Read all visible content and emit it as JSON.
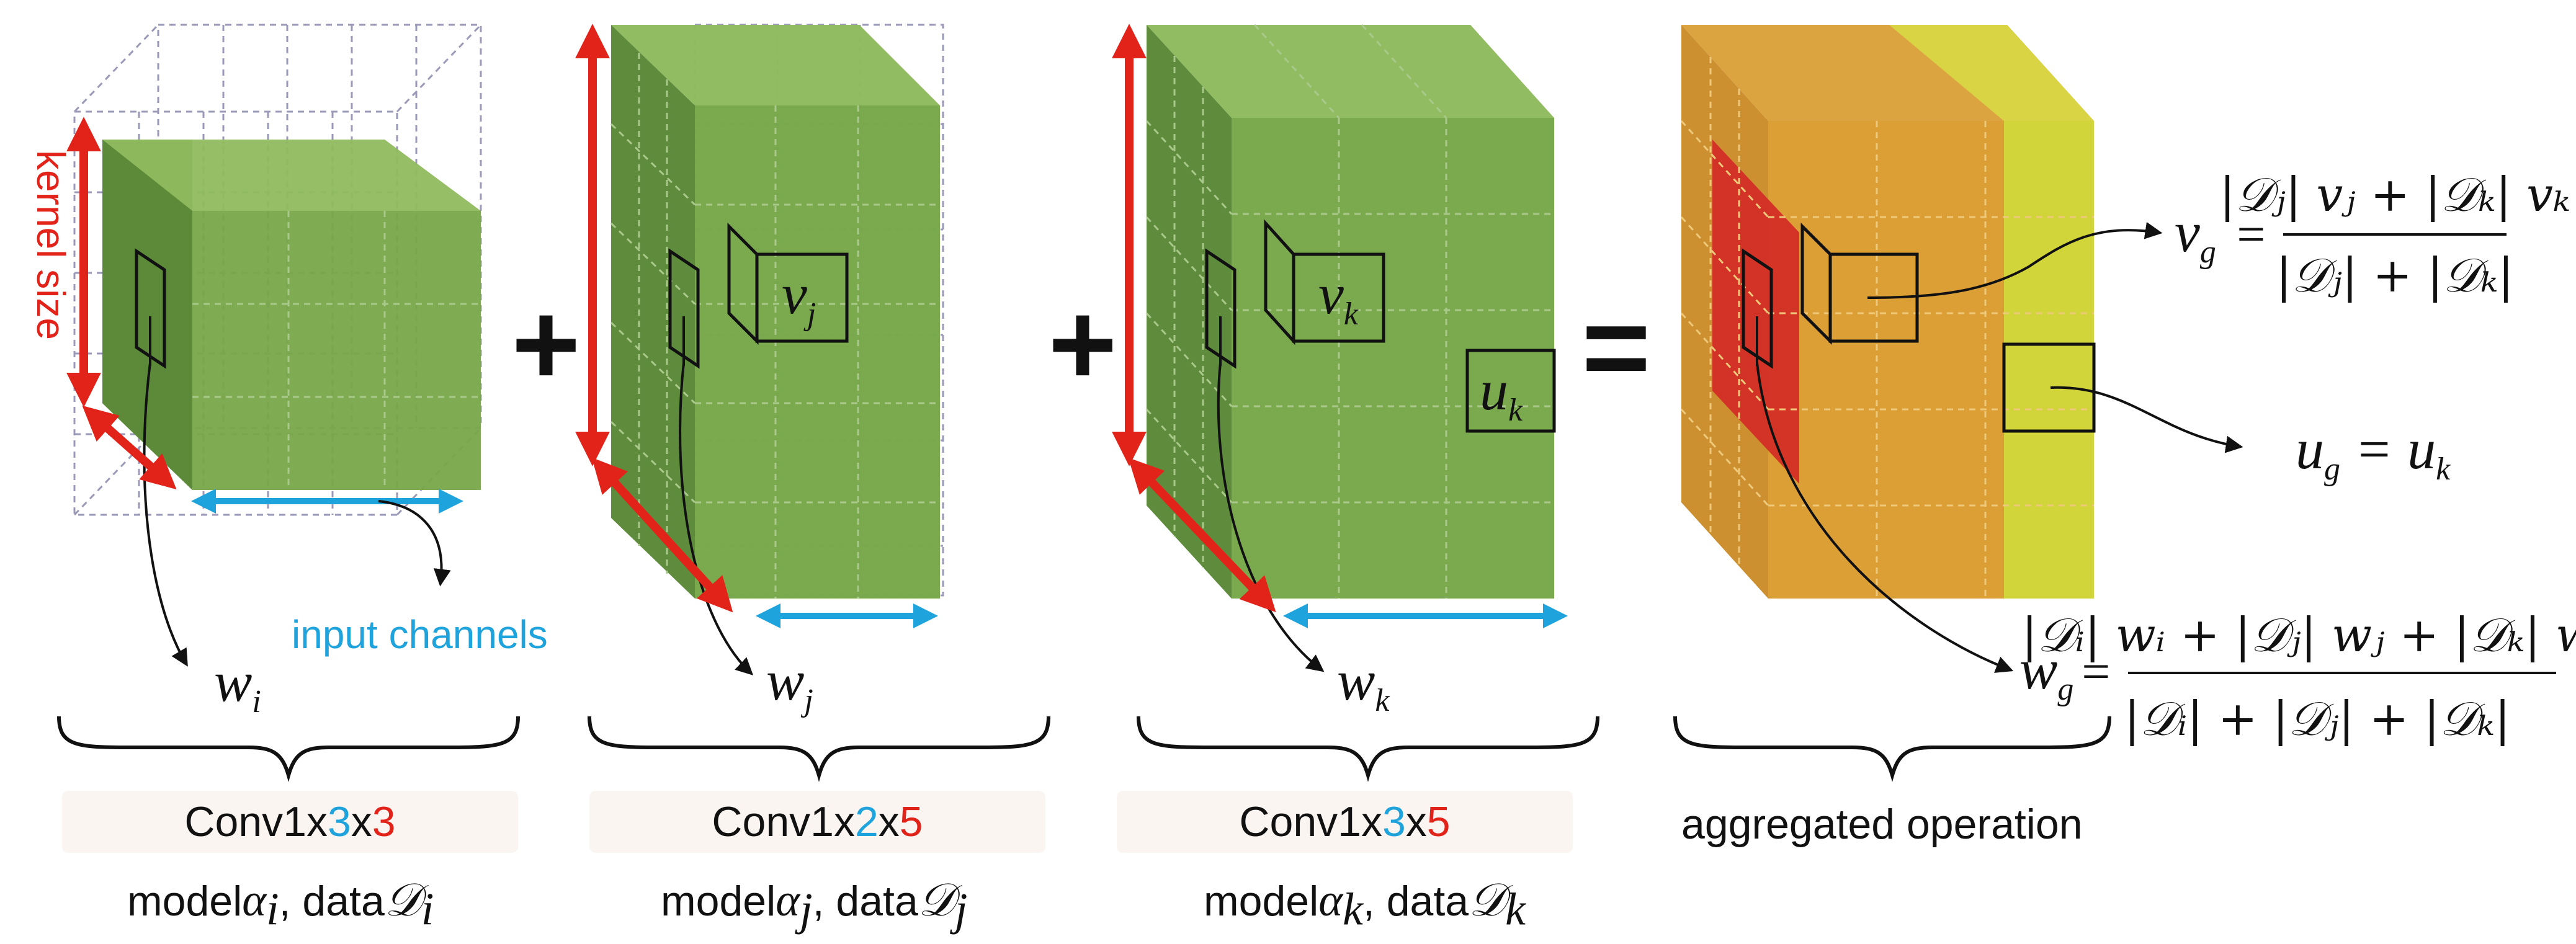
{
  "axis_labels": {
    "kernel_size": "kernel size",
    "input_channels": "input channels"
  },
  "operators": {
    "plus_1": "+",
    "plus_2": "+",
    "equals": "="
  },
  "colors": {
    "cube_front": "#78a74a",
    "cube_side": "#5c8a38",
    "cube_top": "#8fbb5e",
    "kernel_red": "#e2231a",
    "channel_blue": "#1fa3dc",
    "agg_orange": "#d99a2a",
    "agg_red": "#d42a25",
    "agg_yellow": "#cfd32e"
  },
  "models": [
    {
      "weight_symbol": "w",
      "weight_sub": "i",
      "op_prefix": "Conv1x",
      "op_channel": "3",
      "op_x": "x",
      "op_kernel": "3",
      "caption_model": "model",
      "caption_alpha": "α",
      "caption_alpha_sub": "i",
      "caption_data": ", data",
      "caption_D": "𝒟",
      "caption_D_sub": "i"
    },
    {
      "weight_symbol": "w",
      "weight_sub": "j",
      "extra_symbol": "v",
      "extra_sub": "j",
      "op_prefix": "Conv1x",
      "op_channel": "2",
      "op_x": "x",
      "op_kernel": "5",
      "caption_model": "model",
      "caption_alpha": "α",
      "caption_alpha_sub": "j",
      "caption_data": ", data",
      "caption_D": "𝒟",
      "caption_D_sub": "j"
    },
    {
      "weight_symbol": "w",
      "weight_sub": "k",
      "extra_symbol": "v",
      "extra_sub": "k",
      "extra2_symbol": "u",
      "extra2_sub": "k",
      "op_prefix": "Conv1x",
      "op_channel": "3",
      "op_x": "x",
      "op_kernel": "5",
      "caption_model": "model",
      "caption_alpha": "α",
      "caption_alpha_sub": "k",
      "caption_data": ", data",
      "caption_D": "𝒟",
      "caption_D_sub": "k"
    }
  ],
  "aggregated": {
    "label": "aggregated operation",
    "vg_formula": {
      "lhs": "v",
      "lhs_sub": "g",
      "numerator": "|𝒟ⱼ| vⱼ + |𝒟ₖ| vₖ",
      "denominator": "|𝒟ⱼ| + |𝒟ₖ|"
    },
    "ug_formula": {
      "lhs": "u",
      "lhs_sub": "g",
      "rhs": "u",
      "rhs_sub": "k"
    },
    "wg_formula": {
      "lhs": "w",
      "lhs_sub": "g",
      "numerator": "|𝒟ᵢ| wᵢ + |𝒟ⱼ| wⱼ + |𝒟ₖ| wₖ",
      "denominator": "|𝒟ᵢ| + |𝒟ⱼ| + |𝒟ₖ|"
    }
  }
}
